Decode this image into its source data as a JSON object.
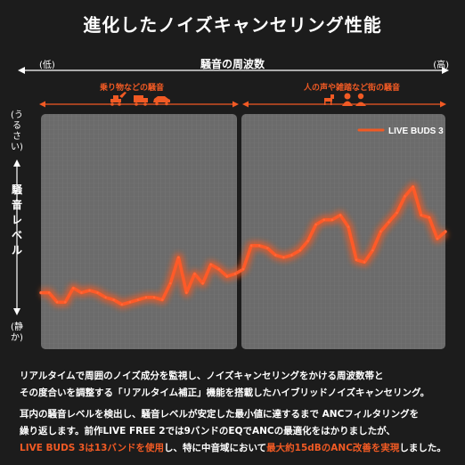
{
  "title": "進化したノイズキャンセリング性能",
  "axes": {
    "x_label": "騒音の周波数",
    "x_low": "(低)",
    "x_high": "(高)",
    "y_label": "騒音レベル",
    "y_top": "(うるさい)",
    "y_bottom": "(静か)"
  },
  "categories": {
    "left": "乗り物などの騒音",
    "right": "人の声や雑踏など街の騒音"
  },
  "icons": {
    "left": [
      "excavator-icon",
      "truck-icon",
      "car-icon"
    ],
    "right": [
      "dog-icon",
      "woman-icon",
      "man-icon"
    ]
  },
  "colors": {
    "accent": "#f15a24",
    "panel": "#6b6b6b",
    "background": "#1c1c1c"
  },
  "chart_data": {
    "type": "line",
    "series": [
      {
        "name": "LIVE BUDS 3",
        "x": [
          0,
          2,
          4,
          6,
          8,
          10,
          12,
          14,
          16,
          18,
          20,
          22,
          24,
          26,
          28,
          30,
          32,
          34,
          36,
          38,
          40,
          42,
          44,
          46,
          48,
          50,
          52,
          54,
          56,
          58,
          60,
          62,
          64,
          66,
          68,
          70,
          72,
          74,
          76,
          78,
          80,
          82,
          84,
          86,
          88,
          90,
          92,
          94,
          96,
          98,
          100
        ],
        "y": [
          24,
          24,
          20,
          20,
          26,
          24,
          25,
          24,
          22,
          21,
          19,
          20,
          21,
          22,
          22,
          21,
          28,
          39,
          24,
          32,
          28,
          36,
          34,
          31,
          32,
          34,
          44,
          44,
          43,
          40,
          39,
          40,
          42,
          46,
          53,
          55,
          55,
          57,
          52,
          38,
          37,
          42,
          50,
          54,
          58,
          65,
          69,
          57,
          56,
          47,
          50
        ]
      }
    ],
    "xlim": [
      0,
      100
    ],
    "ylim": [
      0,
      100
    ],
    "grid": true,
    "legend": "top-right"
  },
  "paragraphs": {
    "p1_line1": "リアルタイムで周囲のノイズ成分を監視し、ノイズキャンセリングをかける周波数帯と",
    "p1_line2": "その度合いを調整する「リアルタイム補正」機能を搭載したハイブリッドノイズキャンセリング。",
    "p2_line1": "耳内の騒音レベルを検出し、騒音レベルが安定した最小値に達するまで ANCフィルタリングを",
    "p2_line2": "繰り返します。前作LIVE FREE 2では9バンドのEQでANCの最適化をはかりましたが、",
    "p2_line3_a": "LIVE BUDS 3は13バンドを使用",
    "p2_line3_b": "し、特に中音域において",
    "p2_line3_c": "最大約15dBのANC改善を実現",
    "p2_line3_d": "しました。"
  }
}
